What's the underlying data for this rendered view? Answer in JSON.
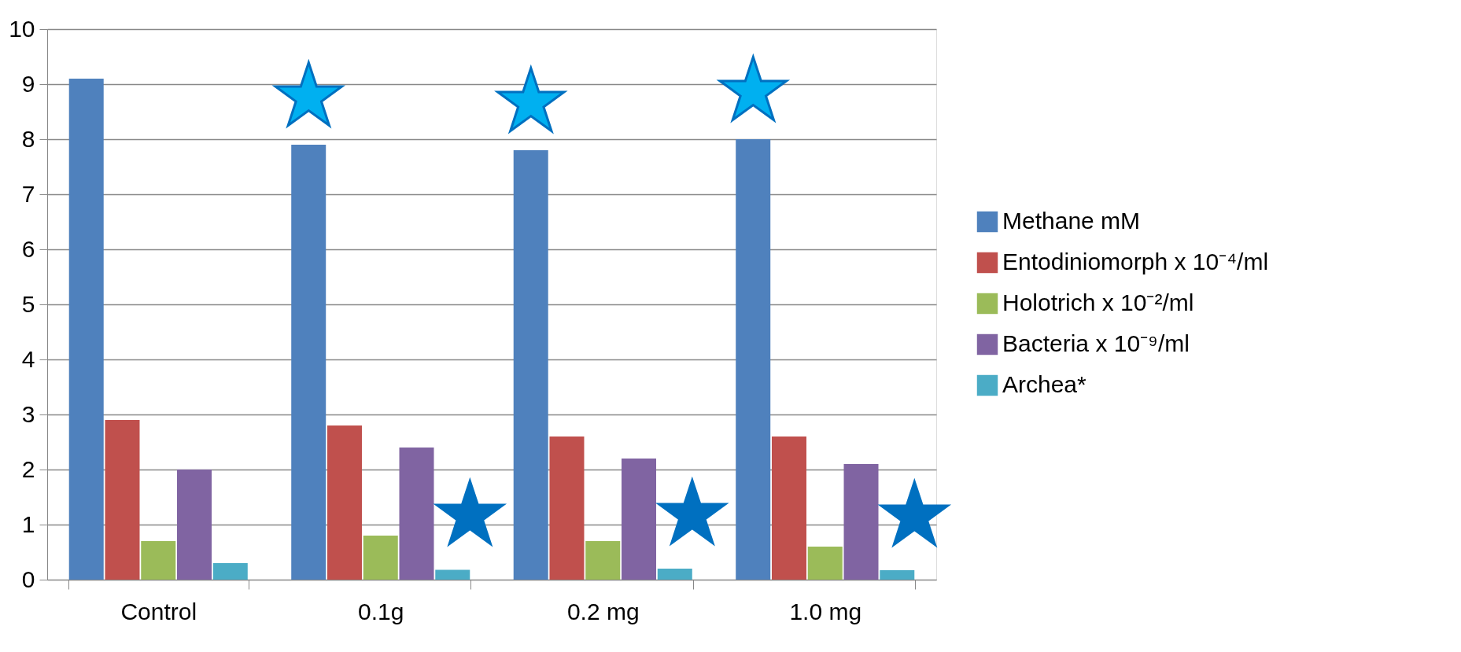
{
  "chart_data": {
    "type": "bar",
    "categories": [
      "Control",
      "0.1g",
      "0.2 mg",
      "1.0 mg"
    ],
    "series": [
      {
        "name": "Methane mM",
        "color": "#4f81bd",
        "values": [
          9.1,
          7.9,
          7.8,
          8.0
        ]
      },
      {
        "name": "Entodiniomorph  x 10⁻⁴/ml",
        "color": "#c0504d",
        "values": [
          2.9,
          2.8,
          2.6,
          2.6
        ]
      },
      {
        "name": "Holotrich  x 10⁻²/ml",
        "color": "#9bbb59",
        "values": [
          0.7,
          0.8,
          0.7,
          0.6
        ]
      },
      {
        "name": "Bacteria x 10⁻⁹/ml",
        "color": "#8064a2",
        "values": [
          2.0,
          2.4,
          2.2,
          2.1
        ]
      },
      {
        "name": "Archea*",
        "color": "#4bacc6",
        "values": [
          0.3,
          0.18,
          0.2,
          0.17
        ]
      }
    ],
    "ylim": [
      0,
      10
    ],
    "yticks": [
      0,
      1,
      2,
      3,
      4,
      5,
      6,
      7,
      8,
      9,
      10
    ],
    "grid": "y",
    "legend": "right",
    "annotations": [
      "★",
      "★",
      "★",
      "★",
      "★",
      "★"
    ]
  }
}
